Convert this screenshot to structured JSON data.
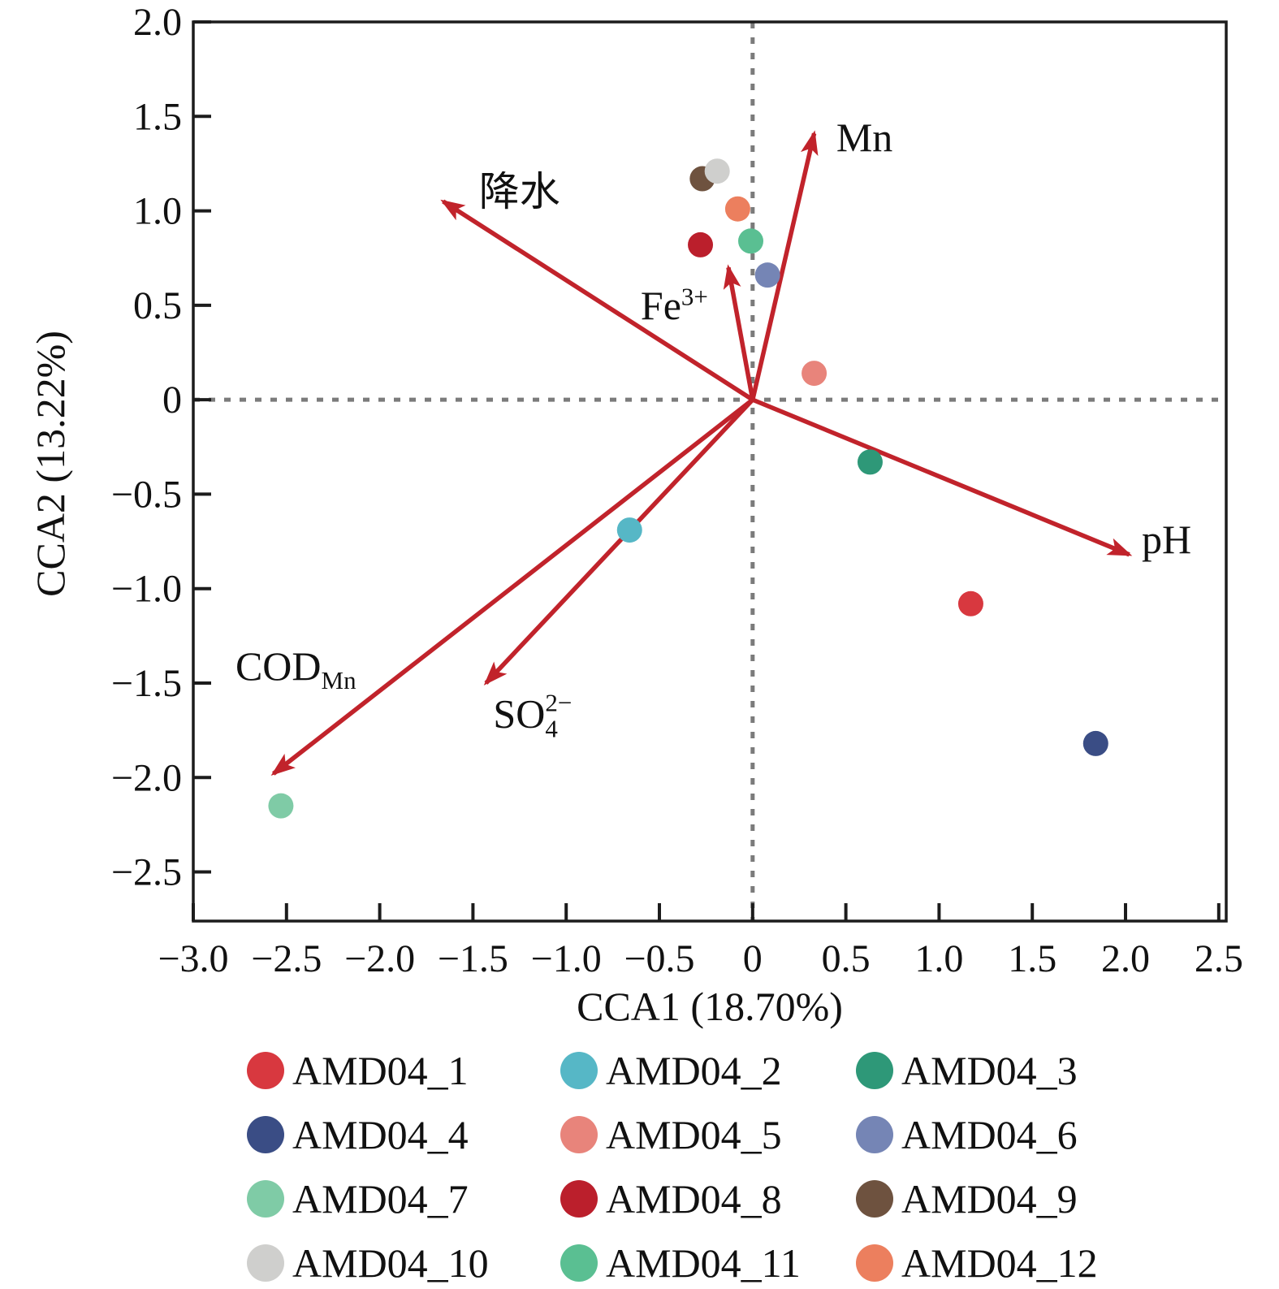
{
  "figure": {
    "x_axis_title": "CCA1 (18.70%)",
    "y_axis_title": "CCA2 (13.22%)"
  },
  "chart_data": {
    "type": "scatter",
    "subtype": "CCA-biplot",
    "title": "",
    "xlabel": "CCA1 (18.70%)",
    "ylabel": "CCA2 (13.22%)",
    "xlim": [
      -3.0,
      2.54
    ],
    "ylim": [
      -2.76,
      2.0
    ],
    "grid": false,
    "zero_lines": "dashed",
    "legend_position": "bottom",
    "colors": {
      "arrow": "#c1232b",
      "axis": "#1c1c1c",
      "zero_line": "#7b7b7b",
      "background": "#ffffff"
    },
    "x_ticks": [
      -3.0,
      -2.5,
      -2.0,
      -1.5,
      -1.0,
      -0.5,
      0,
      0.5,
      1.0,
      1.5,
      2.0,
      2.5
    ],
    "x_tick_labels": [
      "−3.0",
      "−2.5",
      "−2.0",
      "−1.5",
      "−1.0",
      "−0.5",
      "0",
      "0.5",
      "1.0",
      "1.5",
      "2.0",
      "2.5"
    ],
    "y_ticks": [
      2.0,
      1.5,
      1.0,
      0.5,
      0,
      -0.5,
      -1.0,
      -1.5,
      -2.0,
      -2.5
    ],
    "y_tick_labels": [
      "2.0",
      "1.5",
      "1.0",
      "0.5",
      "0",
      "−0.5",
      "−1.0",
      "−1.5",
      "−2.0",
      "−2.5"
    ],
    "points": [
      {
        "name": "AMD04_1",
        "x": 1.17,
        "y": -1.08,
        "color": "#d8383f"
      },
      {
        "name": "AMD04_2",
        "x": -0.66,
        "y": -0.69,
        "color": "#56b7c6"
      },
      {
        "name": "AMD04_3",
        "x": 0.63,
        "y": -0.33,
        "color": "#2e9878"
      },
      {
        "name": "AMD04_4",
        "x": 1.84,
        "y": -1.82,
        "color": "#3a4d85"
      },
      {
        "name": "AMD04_5",
        "x": 0.33,
        "y": 0.14,
        "color": "#e8847b"
      },
      {
        "name": "AMD04_6",
        "x": 0.08,
        "y": 0.66,
        "color": "#7585b5"
      },
      {
        "name": "AMD04_7",
        "x": -2.53,
        "y": -2.15,
        "color": "#7fcba6"
      },
      {
        "name": "AMD04_8",
        "x": -0.28,
        "y": 0.82,
        "color": "#bb1f2c"
      },
      {
        "name": "AMD04_9",
        "x": -0.27,
        "y": 1.17,
        "color": "#6e523f"
      },
      {
        "name": "AMD04_10",
        "x": -0.19,
        "y": 1.21,
        "color": "#cfcfcd"
      },
      {
        "name": "AMD04_11",
        "x": -0.01,
        "y": 0.84,
        "color": "#5abf92"
      },
      {
        "name": "AMD04_12",
        "x": -0.08,
        "y": 1.01,
        "color": "#ec7f5e"
      }
    ],
    "arrows": [
      {
        "name": "Mn",
        "x": 0.33,
        "y": 1.41,
        "label": {
          "base": "Mn"
        },
        "label_pos": {
          "x": 0.6,
          "y": 1.39
        }
      },
      {
        "name": "precipitation",
        "x": -1.66,
        "y": 1.05,
        "label": {
          "base": "降水"
        },
        "label_pos": {
          "x": -1.25,
          "y": 1.12
        }
      },
      {
        "name": "Fe3+",
        "x": -0.13,
        "y": 0.7,
        "label": {
          "base": "Fe",
          "sup": "3+"
        },
        "label_pos": {
          "x": -0.42,
          "y": 0.5
        }
      },
      {
        "name": "pH",
        "x": 2.02,
        "y": -0.82,
        "label": {
          "base": "pH"
        },
        "label_pos": {
          "x": 2.22,
          "y": -0.74
        }
      },
      {
        "name": "CODMn",
        "x": -2.57,
        "y": -1.98,
        "label": {
          "base": "COD",
          "sub": "Mn"
        },
        "label_pos": {
          "x": -2.45,
          "y": -1.42
        }
      },
      {
        "name": "SO42-",
        "x": -1.43,
        "y": -1.5,
        "label": {
          "base": "SO",
          "sup": "2−",
          "sub": "4",
          "stacked": true
        },
        "label_pos": {
          "x": -1.18,
          "y": -1.68
        }
      }
    ],
    "legend": [
      {
        "label": "AMD04_1",
        "color": "#d8383f"
      },
      {
        "label": "AMD04_2",
        "color": "#56b7c6"
      },
      {
        "label": "AMD04_3",
        "color": "#2e9878"
      },
      {
        "label": "AMD04_4",
        "color": "#3a4d85"
      },
      {
        "label": "AMD04_5",
        "color": "#e8847b"
      },
      {
        "label": "AMD04_6",
        "color": "#7585b5"
      },
      {
        "label": "AMD04_7",
        "color": "#7fcba6"
      },
      {
        "label": "AMD04_8",
        "color": "#bb1f2c"
      },
      {
        "label": "AMD04_9",
        "color": "#6e523f"
      },
      {
        "label": "AMD04_10",
        "color": "#cfcfcd"
      },
      {
        "label": "AMD04_11",
        "color": "#5abf92"
      },
      {
        "label": "AMD04_12",
        "color": "#ec7f5e"
      }
    ]
  }
}
